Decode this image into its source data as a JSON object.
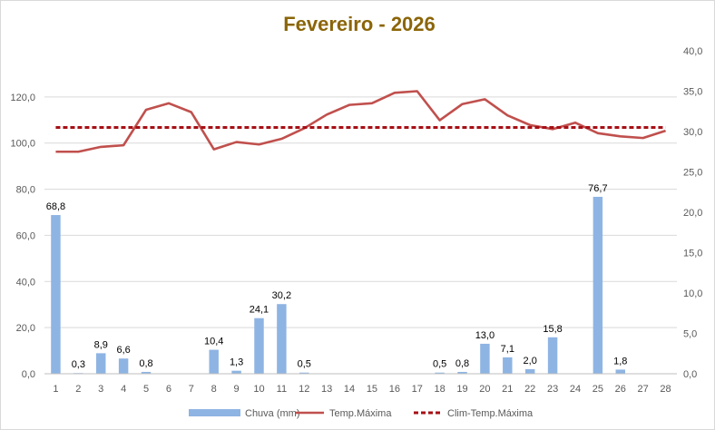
{
  "chart_data": {
    "type": "bar",
    "title": "Fevereiro - 2026",
    "categories": [
      "1",
      "2",
      "3",
      "4",
      "5",
      "6",
      "7",
      "8",
      "9",
      "10",
      "11",
      "12",
      "13",
      "14",
      "15",
      "16",
      "17",
      "18",
      "19",
      "20",
      "21",
      "22",
      "23",
      "24",
      "25",
      "26",
      "27",
      "28"
    ],
    "series": [
      {
        "name": "Chuva (mm)",
        "type": "bar",
        "axis": "left",
        "values": [
          68.8,
          0.3,
          8.9,
          6.6,
          0.8,
          0,
          0,
          10.4,
          1.3,
          24.1,
          30.2,
          0.5,
          0,
          0,
          0,
          0,
          0,
          0.5,
          0.8,
          13.0,
          7.1,
          2.0,
          15.8,
          0,
          76.7,
          1.8,
          0,
          0
        ],
        "labels": [
          "68,8",
          "0,3",
          "8,9",
          "6,6",
          "0,8",
          "",
          "",
          "10,4",
          "1,3",
          "24,1",
          "30,2",
          "0,5",
          "",
          "",
          "",
          "",
          "",
          "0,5",
          "0,8",
          "13,0",
          "7,1",
          "2,0",
          "15,8",
          "",
          "76,7",
          "1,8",
          "",
          ""
        ]
      },
      {
        "name": "Temp.Máxima",
        "type": "line",
        "axis": "right",
        "values": [
          27.5,
          27.5,
          28.1,
          28.3,
          32.7,
          33.5,
          32.4,
          27.8,
          28.7,
          28.4,
          29.1,
          30.4,
          32.1,
          33.3,
          33.5,
          34.8,
          35.0,
          31.4,
          33.4,
          34.0,
          32.0,
          30.8,
          30.3,
          31.1,
          29.8,
          29.4,
          29.2,
          30.1
        ]
      },
      {
        "name": "Clim-Temp.Máxima",
        "type": "line",
        "style": "dashed",
        "axis": "right",
        "values": [
          30.5,
          30.5,
          30.5,
          30.5,
          30.5,
          30.5,
          30.5,
          30.5,
          30.5,
          30.5,
          30.5,
          30.5,
          30.5,
          30.5,
          30.5,
          30.5,
          30.5,
          30.5,
          30.5,
          30.5,
          30.5,
          30.5,
          30.5,
          30.5,
          30.5,
          30.5,
          30.5,
          30.5
        ]
      }
    ],
    "y_left": {
      "min": 0,
      "max": 140,
      "ticks": [
        "0,0",
        "20,0",
        "40,0",
        "60,0",
        "80,0",
        "100,0",
        "120,0"
      ],
      "tick_values": [
        0,
        20,
        40,
        60,
        80,
        100,
        120
      ]
    },
    "y_right": {
      "min": 0,
      "max": 40,
      "ticks": [
        "0,0",
        "5,0",
        "10,0",
        "15,0",
        "20,0",
        "25,0",
        "30,0",
        "35,0",
        "40,0"
      ],
      "tick_values": [
        0,
        5,
        10,
        15,
        20,
        25,
        30,
        35,
        40
      ]
    },
    "grid": true,
    "legend_position": "bottom",
    "colors": {
      "title": "#8b6508",
      "bars": "#8eb4e3",
      "temp_line": "#c0504d",
      "clim_line": "#a50f15",
      "grid": "#d9d9d9",
      "axis_text": "#595959"
    }
  }
}
